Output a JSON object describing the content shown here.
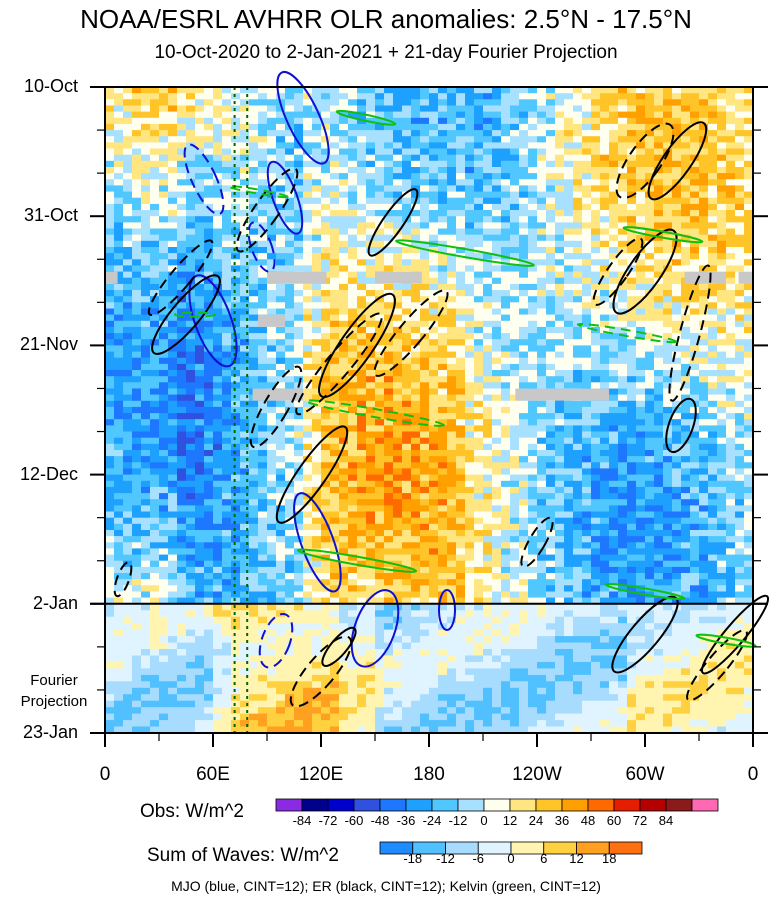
{
  "title": "NOAA/ESRL AVHRR OLR anomalies: 2.5°N - 17.5°N",
  "subtitle": "10-Oct-2020 to 2-Jan-2021 + 21-day Fourier Projection",
  "fourier_label": [
    "Fourier",
    "Projection"
  ],
  "footer": "MJO (blue, CINT=12); ER (black, CINT=12); Kelvin (green, CINT=12)",
  "colors": {
    "mjo": "#1010d0",
    "er": "#000000",
    "kelvin": "#10c010",
    "reference_lines": "#006400",
    "missing": "#c8c8c8"
  },
  "chart_data": {
    "type": "heatmap",
    "title": "NOAA/ESRL AVHRR OLR anomalies: 2.5°N - 17.5°N",
    "x_tick_labels": [
      "0",
      "60E",
      "120E",
      "180",
      "120W",
      "60W",
      "0"
    ],
    "x_tick_lon": [
      0,
      60,
      120,
      180,
      240,
      300,
      360
    ],
    "x_range": [
      0,
      360
    ],
    "y_tick_labels": [
      "10-Oct",
      "31-Oct",
      "21-Nov",
      "12-Dec",
      "2-Jan",
      "23-Jan"
    ],
    "y_tick_day": [
      0,
      21,
      42,
      63,
      84,
      105
    ],
    "y_range_days": [
      0,
      105
    ],
    "observation_end_label": "2-Jan",
    "reference_longitudes": [
      72,
      79
    ],
    "obs_colorbar": {
      "label": "Obs: W/m^2",
      "ticks": [
        -84,
        -72,
        -60,
        -48,
        -36,
        -24,
        -12,
        0,
        12,
        24,
        36,
        48,
        60,
        72,
        84
      ],
      "colors": [
        "#8a2be2",
        "#00008b",
        "#0000cd",
        "#3050e0",
        "#1e78ff",
        "#1ea0ff",
        "#50c8ff",
        "#a8e0ff",
        "#fffff0",
        "#ffe680",
        "#ffc428",
        "#ffa000",
        "#ff6a00",
        "#e61e00",
        "#b40000",
        "#8b1a1a",
        "#ff69b4"
      ]
    },
    "waves_colorbar": {
      "label": "Sum of Waves: W/m^2",
      "ticks": [
        -18,
        -12,
        -6,
        0,
        6,
        12,
        18
      ],
      "colors": [
        "#1e8cff",
        "#50c0ff",
        "#a8dcff",
        "#e0f4ff",
        "#fff5b0",
        "#ffd040",
        "#ffa020",
        "#ff7010"
      ]
    },
    "legend": [
      "MJO (blue, CINT=12)",
      "ER (black, CINT=12)",
      "Kelvin (green, CINT=12)"
    ]
  }
}
